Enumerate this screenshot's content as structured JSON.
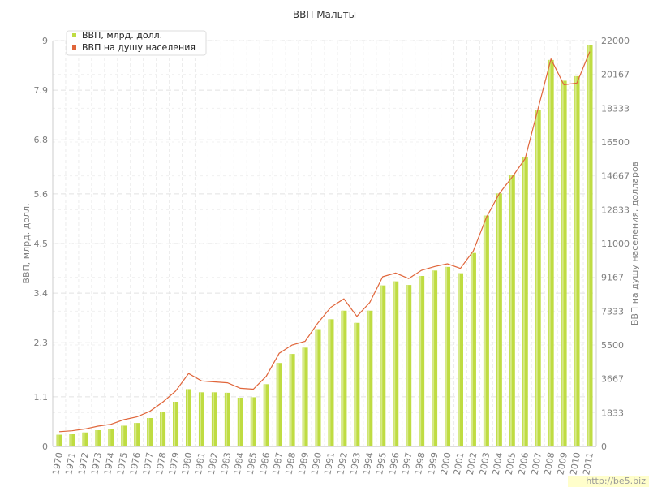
{
  "chart_data": {
    "type": "bar",
    "title": "ВВП Мальты",
    "ylabel": "ВВП, млрд. долл.",
    "y2label": "ВВП на душу населения, долларов",
    "categories": [
      "1970",
      "1971",
      "1972",
      "1973",
      "1974",
      "1975",
      "1976",
      "1977",
      "1978",
      "1979",
      "1980",
      "1981",
      "1982",
      "1983",
      "1984",
      "1985",
      "1986",
      "1987",
      "1988",
      "1989",
      "1990",
      "1991",
      "1992",
      "1993",
      "1994",
      "1995",
      "1996",
      "1997",
      "1998",
      "1999",
      "2000",
      "2001",
      "2002",
      "2003",
      "2004",
      "2005",
      "2006",
      "2007",
      "2008",
      "2009",
      "2010",
      "2011"
    ],
    "series": [
      {
        "name": "ВВП, млрд. долл.",
        "type": "bar",
        "axis": "left",
        "color": "#bfdc42",
        "values": [
          0.26,
          0.27,
          0.31,
          0.36,
          0.38,
          0.46,
          0.52,
          0.63,
          0.77,
          0.99,
          1.27,
          1.2,
          1.2,
          1.19,
          1.08,
          1.09,
          1.38,
          1.85,
          2.05,
          2.19,
          2.6,
          2.82,
          3.01,
          2.74,
          3.01,
          3.57,
          3.66,
          3.58,
          3.78,
          3.9,
          3.98,
          3.84,
          4.29,
          5.12,
          5.61,
          6.02,
          6.42,
          7.47,
          8.57,
          8.11,
          8.21,
          8.9
        ]
      },
      {
        "name": "ВВП на душу населения",
        "type": "line",
        "axis": "right",
        "color": "#e0653a",
        "values": [
          800,
          850,
          950,
          1100,
          1200,
          1450,
          1600,
          1900,
          2400,
          3000,
          3950,
          3550,
          3500,
          3450,
          3150,
          3100,
          3800,
          5050,
          5500,
          5700,
          6700,
          7550,
          8000,
          7050,
          7800,
          9200,
          9400,
          9100,
          9550,
          9750,
          9900,
          9650,
          10600,
          12400,
          13700,
          14600,
          15600,
          18300,
          21000,
          19600,
          19700,
          21400
        ]
      }
    ],
    "ylim": [
      0,
      9
    ],
    "y2lim": [
      0,
      22000
    ],
    "yticks": [
      "0",
      "1.1",
      "2.3",
      "3.4",
      "4.5",
      "5.6",
      "6.8",
      "7.9",
      "9"
    ],
    "y2ticks": [
      "0",
      "1833",
      "3667",
      "5500",
      "7333",
      "9167",
      "11000",
      "12833",
      "14667",
      "16500",
      "18333",
      "20167",
      "22000"
    ],
    "legend_position": "top-left",
    "grid": true
  },
  "watermark": "http://be5.biz"
}
